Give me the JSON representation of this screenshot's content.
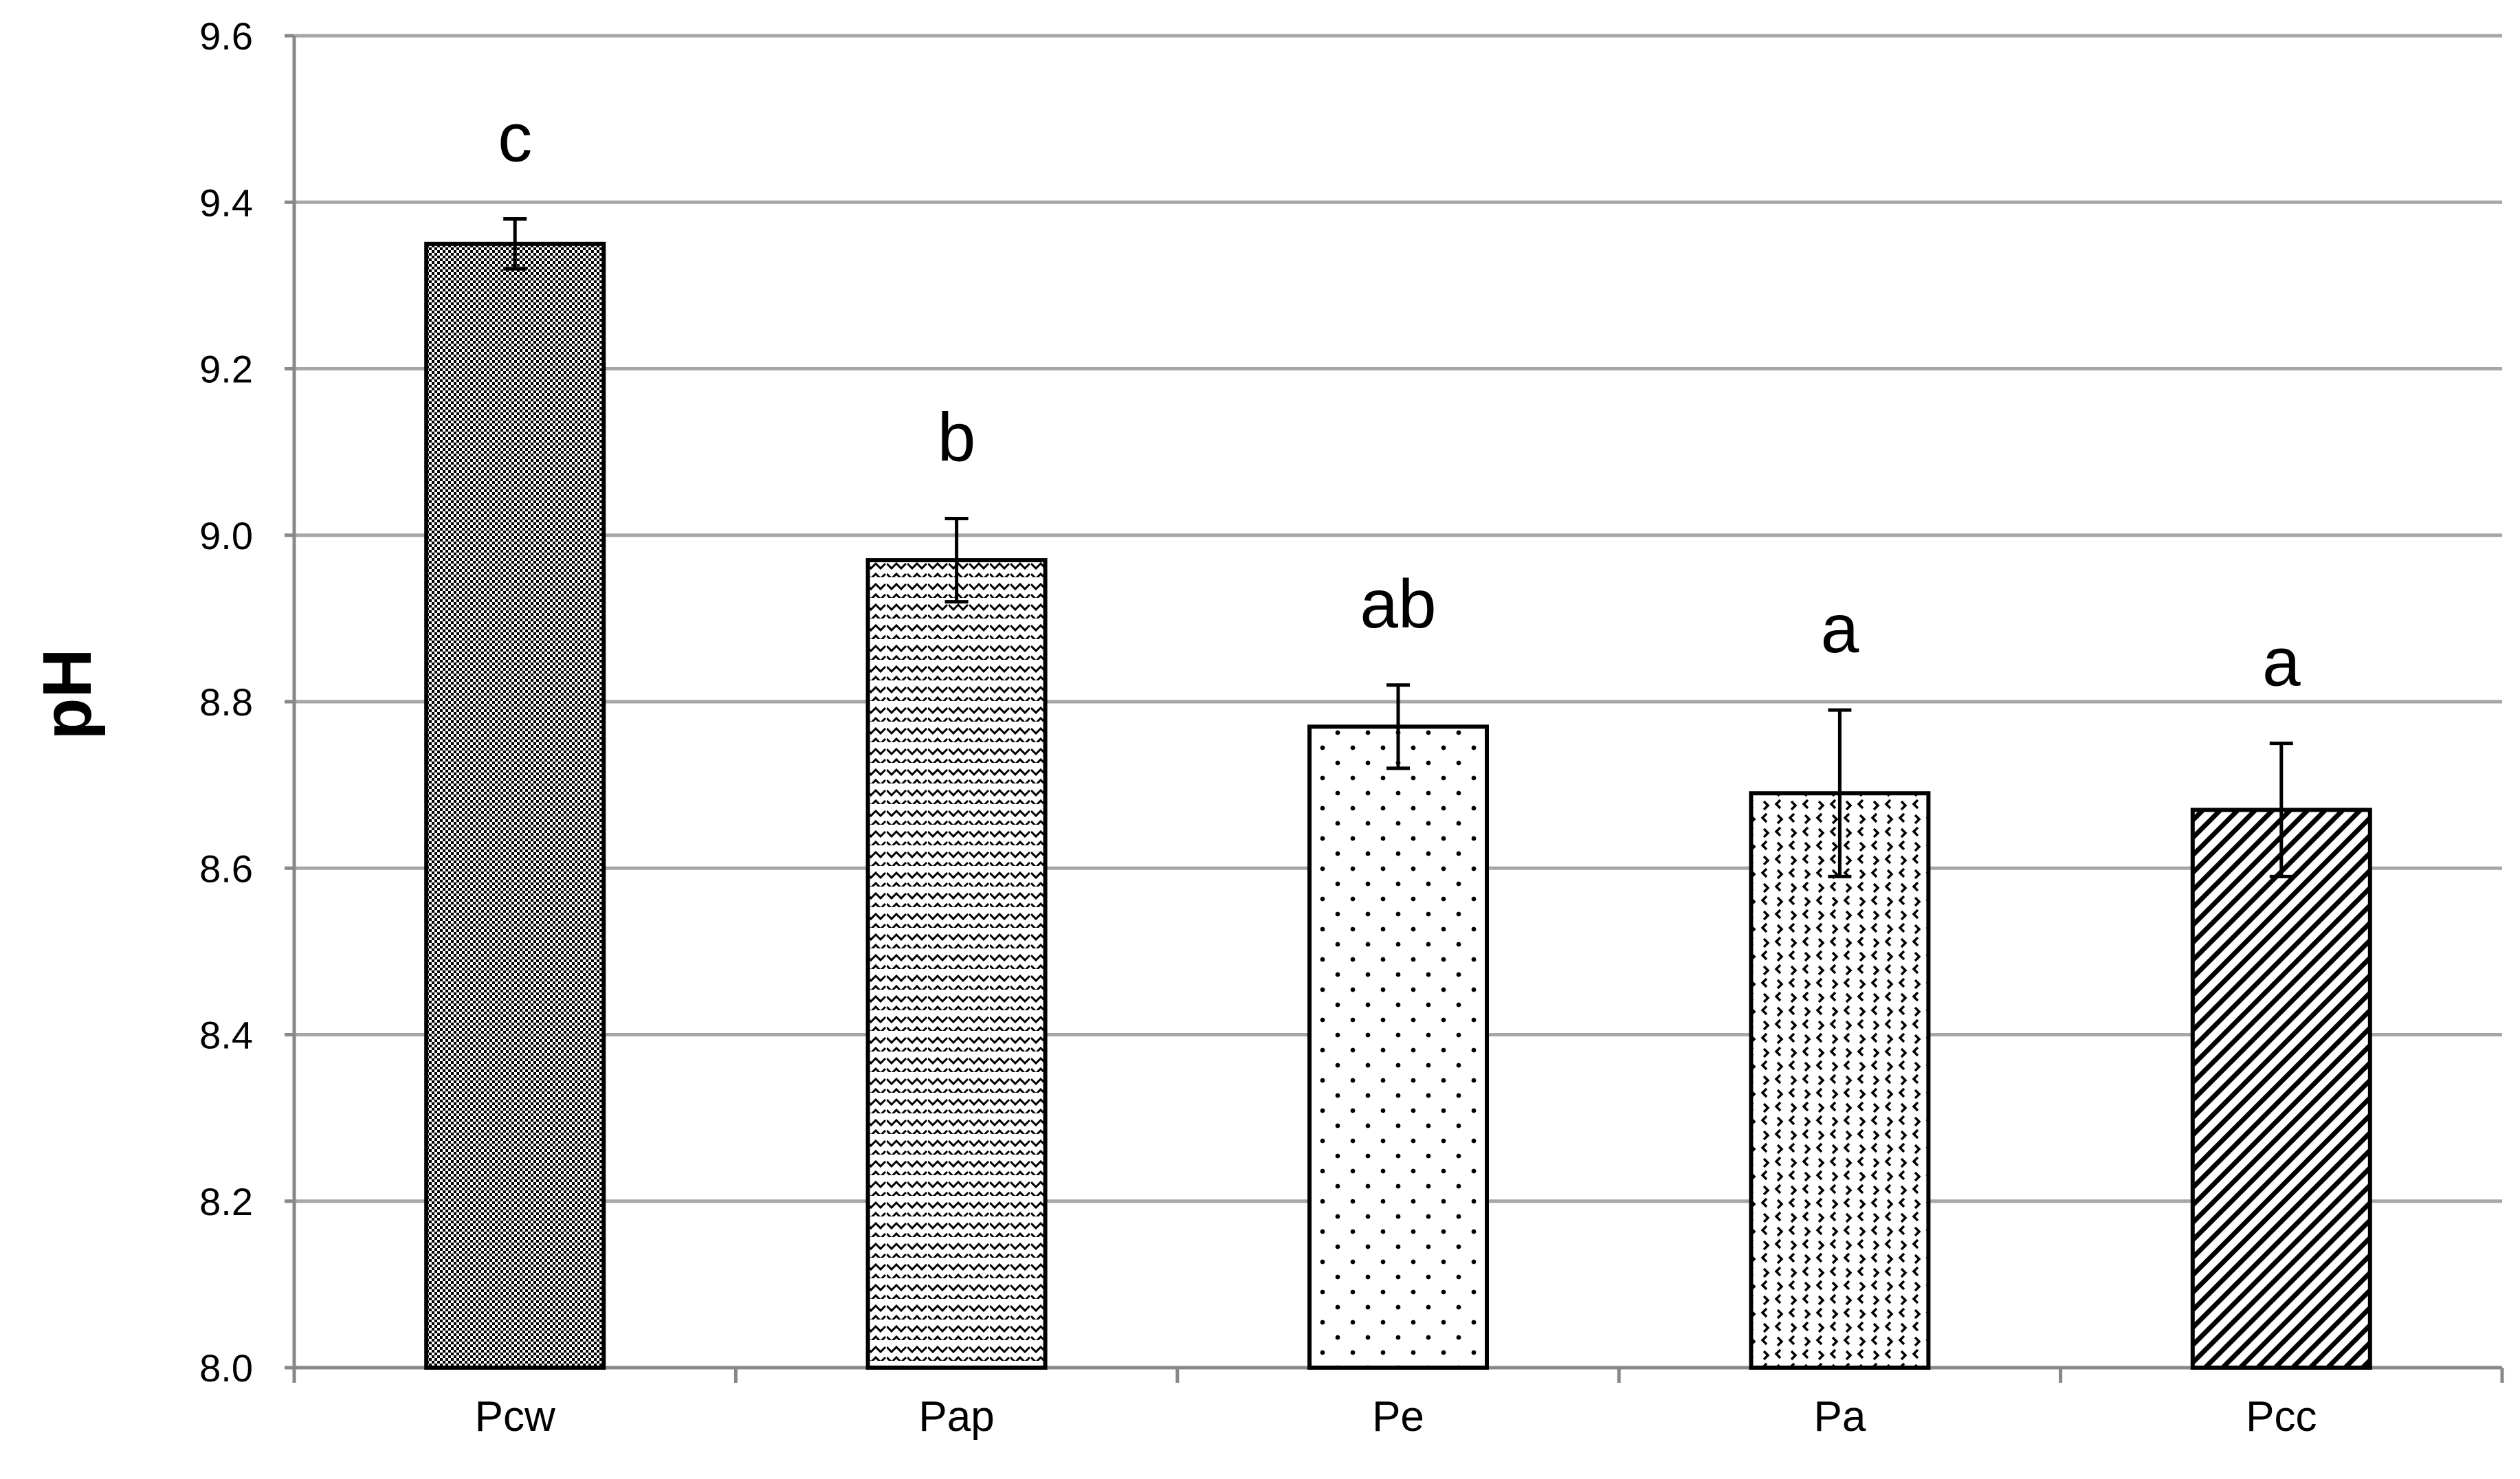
{
  "chart_data": {
    "type": "bar",
    "title": "",
    "xlabel": "",
    "ylabel": "pH",
    "ylim": [
      8.0,
      9.6
    ],
    "yticks": [
      "8.0",
      "8.2",
      "8.4",
      "8.6",
      "8.8",
      "9.0",
      "9.2",
      "9.4",
      "9.6"
    ],
    "grid": true,
    "categories": [
      "Pcw",
      "Pap",
      "Pe",
      "Pa",
      "Pcc"
    ],
    "values": [
      9.35,
      8.97,
      8.77,
      8.69,
      8.67
    ],
    "error_low": [
      9.32,
      8.92,
      8.72,
      8.59,
      8.59
    ],
    "error_high": [
      9.38,
      9.02,
      8.82,
      8.79,
      8.75
    ],
    "significance_letters": [
      "c",
      "b",
      "ab",
      "a",
      "a"
    ],
    "bar_fills": [
      "dense-dots",
      "wave-lines",
      "sparse-dots",
      "zigzag-dots",
      "diagonal-stripes"
    ],
    "colors": {
      "grid": "#a6a6a6",
      "axis": "#888888",
      "bar_edge": "#000000",
      "pattern": "#000000"
    }
  }
}
